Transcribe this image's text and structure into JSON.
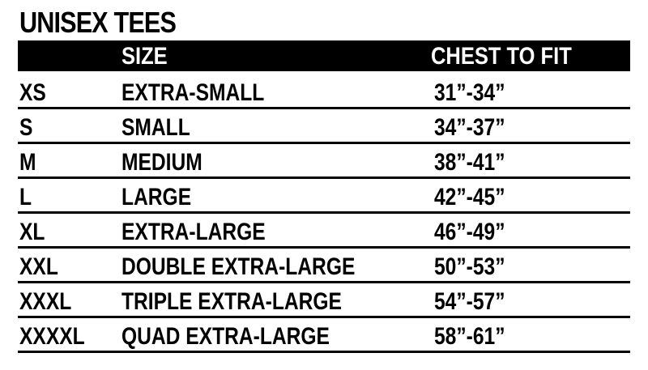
{
  "title": "UNISEX TEES",
  "headers": {
    "size": "SIZE",
    "chest": "CHEST TO FIT"
  },
  "rows": [
    {
      "code": "XS",
      "name": "EXTRA-SMALL",
      "chest": "31”-34”"
    },
    {
      "code": "S",
      "name": "SMALL",
      "chest": "34”-37”"
    },
    {
      "code": "M",
      "name": "MEDIUM",
      "chest": "38”-41”"
    },
    {
      "code": "L",
      "name": "LARGE",
      "chest": "42”-45”"
    },
    {
      "code": "XL",
      "name": "EXTRA-LARGE",
      "chest": "46”-49”"
    },
    {
      "code": "XXL",
      "name": "DOUBLE EXTRA-LARGE",
      "chest": "50”-53”"
    },
    {
      "code": "XXXL",
      "name": "TRIPLE EXTRA-LARGE",
      "chest": "54”-57”"
    },
    {
      "code": "XXXXL",
      "name": "QUAD EXTRA-LARGE",
      "chest": "58”-61”"
    }
  ]
}
